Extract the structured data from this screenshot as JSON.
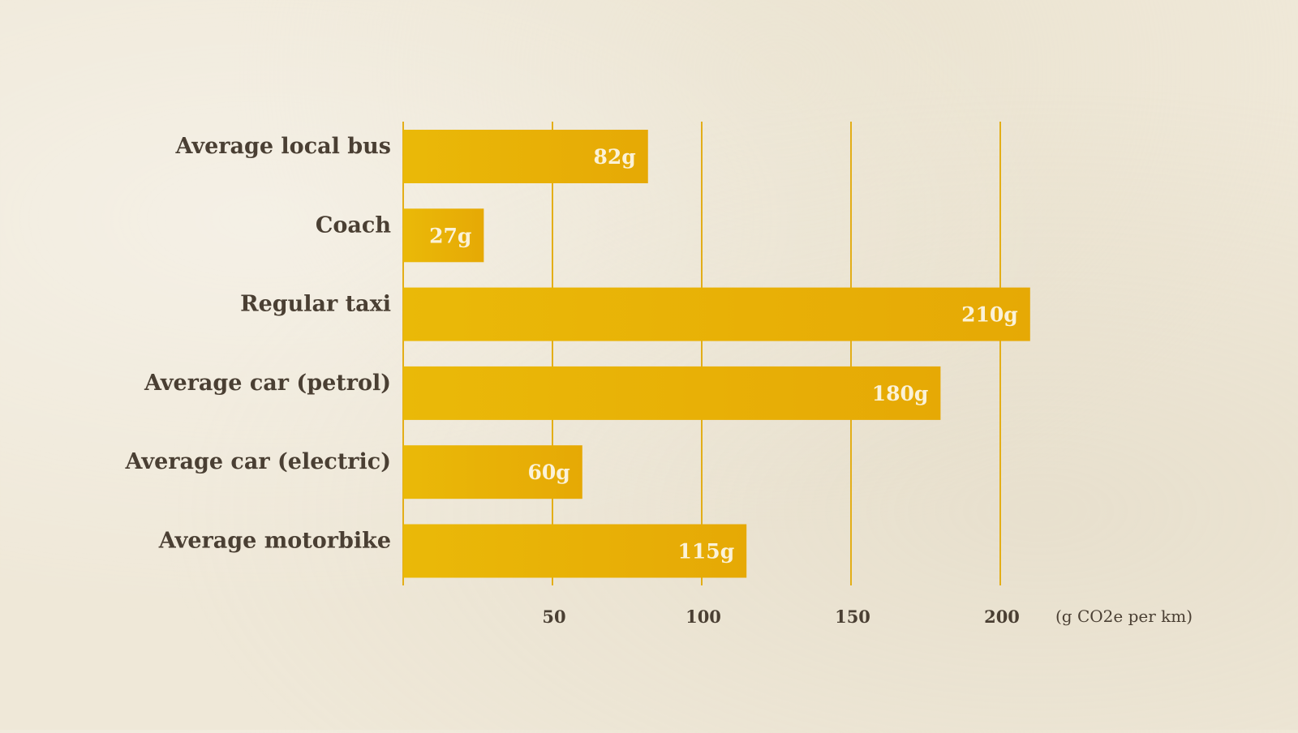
{
  "chart_data": {
    "type": "bar",
    "orientation": "horizontal",
    "categories": [
      "Average local bus",
      "Coach",
      "Regular taxi",
      "Average car (petrol)",
      "Average car (electric)",
      "Average motorbike"
    ],
    "values": [
      82,
      27,
      210,
      180,
      60,
      115
    ],
    "value_labels": [
      "82g",
      "27g",
      "210g",
      "180g",
      "60g",
      "115g"
    ],
    "x_ticks": [
      50,
      100,
      150,
      200
    ],
    "x_tick_labels": [
      "50",
      "100",
      "150",
      "200"
    ],
    "xlabel": "(g CO2e per km)",
    "xlim": [
      0,
      210
    ],
    "grid": true,
    "legend": "none",
    "colors": {
      "bar": "#e8ad06",
      "bar_highlight": "#efbd0c",
      "grid": "#e3ae18",
      "category_text": "#4a3f33",
      "value_text": "#fbf2d8",
      "background": "#efe8d8"
    }
  }
}
